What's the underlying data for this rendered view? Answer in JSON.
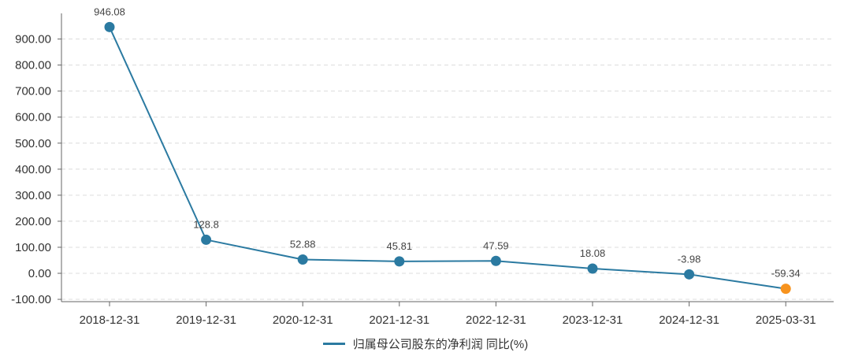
{
  "chart_data": {
    "type": "line",
    "categories": [
      "2018-12-31",
      "2019-12-31",
      "2020-12-31",
      "2021-12-31",
      "2022-12-31",
      "2023-12-31",
      "2024-12-31",
      "2025-03-31"
    ],
    "series": [
      {
        "name": "归属母公司股东的净利润 同比(%)",
        "values": [
          946.08,
          128.8,
          52.88,
          45.81,
          47.59,
          18.08,
          -3.98,
          -59.34
        ],
        "data_labels": [
          "946.08",
          "128.8",
          "52.88",
          "45.81",
          "47.59",
          "18.08",
          "-3.98",
          "-59.34"
        ],
        "color": "#2b7aa1",
        "last_point_color": "#f7931e"
      }
    ],
    "yticks": [
      -100,
      0,
      100,
      200,
      300,
      400,
      500,
      600,
      700,
      800,
      900
    ],
    "ytick_labels": [
      "-100.00",
      "0.00",
      "100.00",
      "200.00",
      "300.00",
      "400.00",
      "500.00",
      "600.00",
      "700.00",
      "800.00",
      "900.00"
    ],
    "ylim": [
      -100,
      1000
    ],
    "grid": true,
    "legend_position": "bottom-center",
    "title": "",
    "xlabel": "",
    "ylabel": ""
  }
}
